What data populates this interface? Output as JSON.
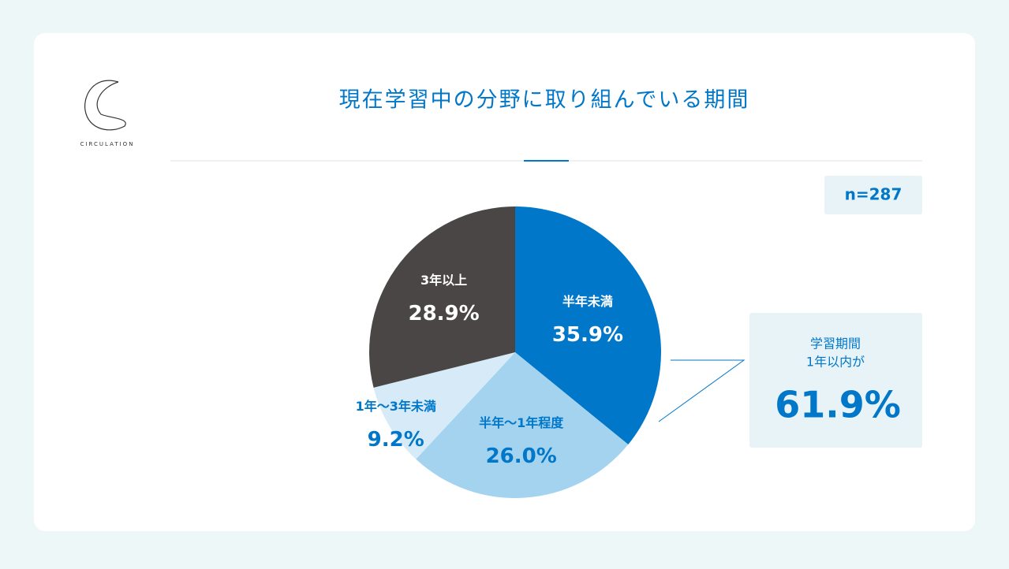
{
  "logo": "CIRCULATION",
  "chart_data": {
    "type": "pie",
    "title": "現在学習中の分野に取り組んでいる期間",
    "sample_size": "n=287",
    "categories": [
      "半年未満",
      "半年〜1年程度",
      "1年〜3年未満",
      "3年以上"
    ],
    "values": [
      35.9,
      26.0,
      9.2,
      28.9
    ],
    "value_labels": [
      "35.9%",
      "26.0%",
      "9.2%",
      "28.9%"
    ],
    "colors": [
      "#0077c8",
      "#a4d3ef",
      "#d6ebf7",
      "#4a4646"
    ],
    "callout": {
      "lines": [
        "学習期間",
        "1年以内が"
      ],
      "value_label": "61.9%"
    }
  }
}
